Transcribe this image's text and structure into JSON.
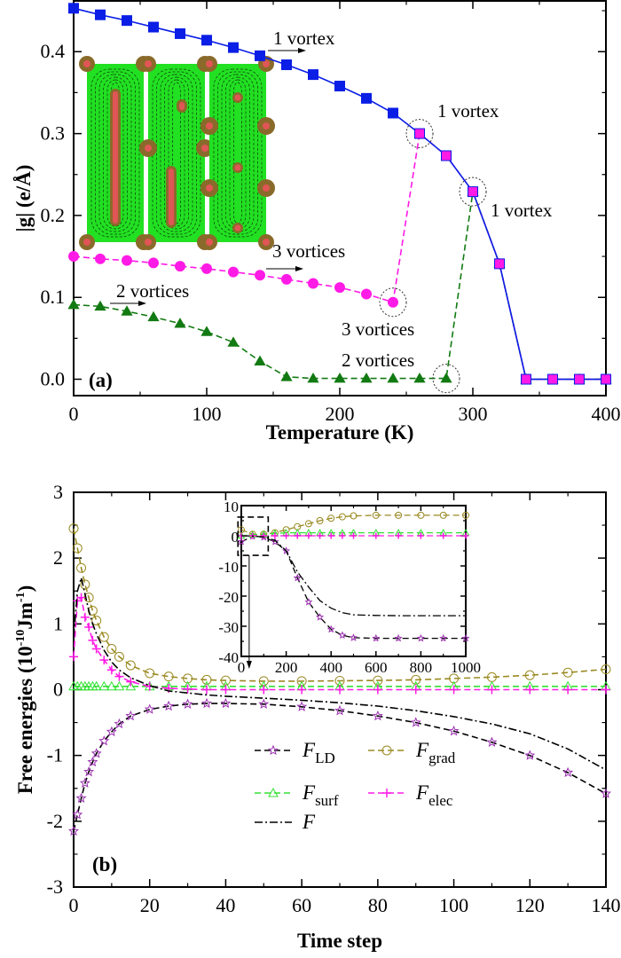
{
  "chart_data": [
    {
      "type": "line",
      "panel_label": "(a)",
      "xlabel": "Temperature (K)",
      "ylabel": "|g| (e/Å)",
      "xlim": [
        0,
        400
      ],
      "ylim": [
        -0.02,
        0.462
      ],
      "xticks": [
        0,
        100,
        200,
        300,
        400
      ],
      "yticks": [
        0.0,
        0.1,
        0.2,
        0.3,
        0.4
      ],
      "grid": false,
      "x": [
        0,
        20,
        40,
        60,
        80,
        100,
        120,
        140,
        160,
        180,
        200,
        220,
        240,
        260,
        280,
        300,
        320,
        340,
        360,
        380,
        400
      ],
      "series": [
        {
          "color": "#0a1ee6",
          "marker": "square",
          "line": "solid",
          "values": [
            0.453,
            0.445,
            0.438,
            0.43,
            0.422,
            0.414,
            0.405,
            0.395,
            0.384,
            0.372,
            0.358,
            0.343,
            0.325,
            0.3,
            0.273,
            0.229,
            0.141,
            0,
            0,
            0,
            0
          ]
        },
        {
          "color": "#ff1ae6",
          "marker": "circle",
          "line": "dashed",
          "values": [
            0.15,
            0.147,
            0.145,
            0.142,
            0.138,
            0.135,
            0.131,
            0.127,
            0.122,
            0.117,
            0.112,
            0.104,
            0.094,
            0.3,
            0.273,
            0.229,
            0.141,
            0,
            0,
            0,
            0
          ]
        },
        {
          "color": "#127a12",
          "marker": "triangle",
          "line": "dashed",
          "values": [
            0.091,
            0.089,
            0.083,
            0.076,
            0.068,
            0.058,
            0.045,
            0.022,
            0.003,
            0.001,
            0.001,
            0.001,
            0.001,
            0.001,
            0.001,
            0.229,
            0.141,
            0,
            0,
            0,
            0
          ]
        }
      ],
      "annotations": [
        {
          "text": "1 vortex",
          "arrow": true
        },
        {
          "text": "1 vortex",
          "circled_point": [
            260,
            0.3
          ]
        },
        {
          "text": "1 vortex",
          "circled_point": [
            300,
            0.229
          ]
        },
        {
          "text": "3 vortices",
          "arrow": true
        },
        {
          "text": "2 vortices",
          "arrow": true
        },
        {
          "text": "3 vortices",
          "circled_point": [
            240,
            0.094
          ]
        },
        {
          "text": "2 vortices",
          "circled_point": [
            280,
            0.001
          ]
        }
      ],
      "inset": "three polarization-vortex maps (green field, red vortex cores, black arrows)"
    },
    {
      "type": "line",
      "panel_label": "(b)",
      "xlabel": "Time step",
      "ylabel_main": "Free energies (10",
      "ylabel_exp1": "-10",
      "ylabel_mid": "Jm",
      "ylabel_exp2": "-1",
      "ylabel_end": ")",
      "xlim": [
        0,
        140
      ],
      "ylim": [
        -3,
        3
      ],
      "xticks": [
        0,
        20,
        40,
        60,
        80,
        100,
        120,
        140
      ],
      "yticks": [
        -3,
        -2,
        -1,
        0,
        1,
        2,
        3
      ],
      "grid": false,
      "legend_placement": "lower-center",
      "x": [
        0,
        1,
        2,
        3,
        4,
        5,
        6,
        8,
        10,
        12,
        15,
        20,
        25,
        30,
        35,
        40,
        50,
        60,
        70,
        80,
        90,
        100,
        110,
        120,
        130,
        140
      ],
      "series": [
        {
          "name": "F",
          "sub": "LD",
          "color": "#9b30b0",
          "marker": "star",
          "line": "dashed",
          "values": [
            -2.15,
            -1.9,
            -1.65,
            -1.42,
            -1.25,
            -1.1,
            -0.97,
            -0.78,
            -0.64,
            -0.52,
            -0.4,
            -0.3,
            -0.25,
            -0.22,
            -0.21,
            -0.21,
            -0.22,
            -0.26,
            -0.32,
            -0.4,
            -0.5,
            -0.63,
            -0.8,
            -1.0,
            -1.26,
            -1.58
          ]
        },
        {
          "name": "F",
          "sub": "grad",
          "color": "#9a8a22",
          "marker": "circle",
          "line": "dashed",
          "values": [
            2.45,
            2.15,
            1.85,
            1.6,
            1.4,
            1.2,
            1.05,
            0.8,
            0.62,
            0.5,
            0.37,
            0.25,
            0.2,
            0.17,
            0.15,
            0.14,
            0.13,
            0.13,
            0.135,
            0.14,
            0.15,
            0.17,
            0.19,
            0.22,
            0.26,
            0.31
          ]
        },
        {
          "name": "F",
          "sub": "surf",
          "color": "#33e033",
          "marker": "triangle",
          "line": "dashed",
          "values": [
            0.05,
            0.05,
            0.05,
            0.05,
            0.05,
            0.05,
            0.05,
            0.05,
            0.05,
            0.05,
            0.05,
            0.05,
            0.05,
            0.05,
            0.05,
            0.05,
            0.05,
            0.05,
            0.05,
            0.05,
            0.05,
            0.05,
            0.05,
            0.05,
            0.05,
            0.05
          ]
        },
        {
          "name": "F",
          "sub": "elec",
          "color": "#ff1ae6",
          "marker": "plus",
          "line": "dashed",
          "values": [
            0.5,
            1.35,
            1.4,
            1.1,
            0.95,
            0.75,
            0.62,
            0.45,
            0.3,
            0.2,
            0.12,
            0.05,
            0.02,
            0.01,
            0,
            0,
            0,
            0,
            0,
            0,
            0,
            0,
            0,
            0,
            0,
            0
          ]
        },
        {
          "name": "F",
          "sub": "",
          "color": "#000000",
          "marker": "none",
          "line": "dashdot",
          "values": [
            0.8,
            1.5,
            1.7,
            1.45,
            1.2,
            1.0,
            0.85,
            0.6,
            0.42,
            0.3,
            0.18,
            0.06,
            -0.02,
            -0.05,
            -0.08,
            -0.1,
            -0.13,
            -0.16,
            -0.2,
            -0.25,
            -0.32,
            -0.41,
            -0.52,
            -0.67,
            -0.9,
            -1.22
          ]
        }
      ],
      "inset": {
        "xlim": [
          0,
          1000
        ],
        "ylim": [
          -40,
          10
        ],
        "xticks": [
          0,
          200,
          400,
          600,
          800,
          1000
        ],
        "yticks": [
          10,
          0,
          -10,
          -20,
          -30,
          -40
        ],
        "x": [
          0,
          50,
          100,
          150,
          200,
          250,
          300,
          350,
          400,
          450,
          500,
          600,
          700,
          800,
          900,
          1000
        ],
        "series": [
          {
            "sub": "LD",
            "values": [
              -2,
              -0.2,
              -0.5,
              -2,
              -5,
              -14,
              -22,
              -27,
              -31,
              -33,
              -33.8,
              -34,
              -34,
              -34,
              -34,
              -34
            ]
          },
          {
            "sub": "grad",
            "values": [
              2,
              0.5,
              0.5,
              1,
              2,
              3,
              4,
              5,
              5.8,
              6.3,
              6.6,
              6.8,
              6.8,
              6.8,
              6.8,
              6.8
            ]
          },
          {
            "sub": "surf",
            "values": [
              0.05,
              0.3,
              0.5,
              0.8,
              1,
              1,
              1,
              1,
              1,
              1,
              1,
              1,
              1,
              1,
              1,
              1
            ]
          },
          {
            "sub": "elec",
            "values": [
              0,
              0,
              0,
              0,
              0,
              0,
              0,
              0,
              0,
              0,
              0,
              0,
              0,
              0,
              0,
              0
            ]
          },
          {
            "sub": "",
            "values": [
              0,
              -0.1,
              -0.4,
              -1.5,
              -5,
              -12,
              -17,
              -21.5,
              -24,
              -25.5,
              -26.2,
              -26.4,
              -26.5,
              -26.5,
              -26.5,
              -26.5
            ]
          }
        ],
        "zoom_box": {
          "x": [
            -15,
            120
          ],
          "y": [
            -6.5,
            6.2
          ]
        }
      }
    }
  ]
}
